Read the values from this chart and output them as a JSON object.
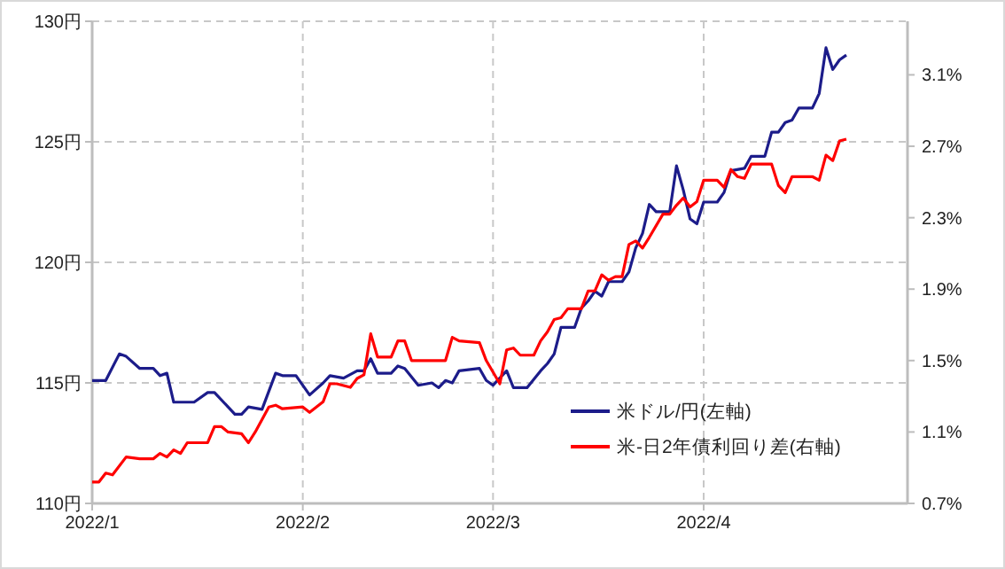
{
  "chart_data": {
    "type": "line",
    "xlim": [
      "2022-01-01",
      "2022-05-01"
    ],
    "xticks": [
      {
        "value": "2022-01-01",
        "label": "2022/1"
      },
      {
        "value": "2022-02-01",
        "label": "2022/2"
      },
      {
        "value": "2022-03-01",
        "label": "2022/3"
      },
      {
        "value": "2022-04-01",
        "label": "2022/4"
      }
    ],
    "ylim": [
      110,
      130
    ],
    "yticks": [
      {
        "value": 110,
        "label": "110円"
      },
      {
        "value": 115,
        "label": "115円"
      },
      {
        "value": 120,
        "label": "120円"
      },
      {
        "value": 125,
        "label": "125円"
      },
      {
        "value": 130,
        "label": "130円"
      }
    ],
    "y2lim": [
      0.7,
      3.4
    ],
    "y2ticks": [
      {
        "value": 0.7,
        "label": "0.7%"
      },
      {
        "value": 1.1,
        "label": "1.1%"
      },
      {
        "value": 1.5,
        "label": "1.5%"
      },
      {
        "value": 1.9,
        "label": "1.9%"
      },
      {
        "value": 2.3,
        "label": "2.3%"
      },
      {
        "value": 2.7,
        "label": "2.7%"
      },
      {
        "value": 3.1,
        "label": "3.1%"
      }
    ],
    "grid": true,
    "legend": "bottom right",
    "line_style": "solid",
    "marker": "none",
    "series": [
      {
        "name": "米ドル/円(左軸)",
        "color": "#1c1c8a",
        "x": [
          "2022-01-01",
          "2022-01-03",
          "2022-01-05",
          "2022-01-06",
          "2022-01-08",
          "2022-01-10",
          "2022-01-11",
          "2022-01-12",
          "2022-01-13",
          "2022-01-16",
          "2022-01-18",
          "2022-01-19",
          "2022-01-21",
          "2022-01-22",
          "2022-01-23",
          "2022-01-24",
          "2022-01-26",
          "2022-01-28",
          "2022-01-29",
          "2022-01-31",
          "2022-02-02",
          "2022-02-04",
          "2022-02-05",
          "2022-02-07",
          "2022-02-09",
          "2022-02-10",
          "2022-02-11",
          "2022-02-12",
          "2022-02-14",
          "2022-02-15",
          "2022-02-16",
          "2022-02-18",
          "2022-02-20",
          "2022-02-21",
          "2022-02-22",
          "2022-02-23",
          "2022-02-24",
          "2022-02-27",
          "2022-02-28",
          "2022-03-01",
          "2022-03-03",
          "2022-03-04",
          "2022-03-06",
          "2022-03-08",
          "2022-03-09",
          "2022-03-10",
          "2022-03-11",
          "2022-03-13",
          "2022-03-14",
          "2022-03-15",
          "2022-03-16",
          "2022-03-17",
          "2022-03-18",
          "2022-03-20",
          "2022-03-21",
          "2022-03-22",
          "2022-03-23",
          "2022-03-24",
          "2022-03-25",
          "2022-03-27",
          "2022-03-28",
          "2022-03-29",
          "2022-03-30",
          "2022-03-31",
          "2022-04-01",
          "2022-04-03",
          "2022-04-04",
          "2022-04-05",
          "2022-04-07",
          "2022-04-08",
          "2022-04-10",
          "2022-04-11",
          "2022-04-12",
          "2022-04-13",
          "2022-04-14",
          "2022-04-15",
          "2022-04-17",
          "2022-04-18",
          "2022-04-19",
          "2022-04-20",
          "2022-04-21",
          "2022-04-22"
        ],
        "values": [
          115.1,
          115.1,
          116.2,
          116.1,
          115.6,
          115.6,
          115.3,
          115.4,
          114.2,
          114.2,
          114.6,
          114.6,
          114.0,
          113.7,
          113.7,
          114.0,
          113.9,
          115.4,
          115.3,
          115.3,
          114.5,
          115.0,
          115.3,
          115.2,
          115.5,
          115.5,
          116.0,
          115.4,
          115.4,
          115.7,
          115.6,
          114.9,
          115.0,
          114.8,
          115.1,
          115.0,
          115.5,
          115.6,
          115.1,
          114.9,
          115.5,
          114.8,
          114.8,
          115.5,
          115.8,
          116.2,
          117.3,
          117.3,
          118.1,
          118.4,
          118.8,
          118.6,
          119.2,
          119.2,
          119.6,
          120.6,
          121.2,
          122.4,
          122.1,
          122.1,
          124.0,
          123.0,
          121.8,
          121.6,
          122.5,
          122.5,
          122.9,
          123.8,
          123.9,
          124.4,
          124.4,
          125.4,
          125.4,
          125.8,
          125.9,
          126.4,
          126.4,
          127.0,
          128.9,
          128.0,
          128.4,
          128.6
        ]
      },
      {
        "name": "米‐日2年債利回り差(右軸)",
        "color": "#ff0000",
        "axis": "y2",
        "x": [
          "2022-01-01",
          "2022-01-02",
          "2022-01-03",
          "2022-01-04",
          "2022-01-06",
          "2022-01-08",
          "2022-01-10",
          "2022-01-11",
          "2022-01-12",
          "2022-01-13",
          "2022-01-14",
          "2022-01-15",
          "2022-01-18",
          "2022-01-19",
          "2022-01-20",
          "2022-01-21",
          "2022-01-23",
          "2022-01-24",
          "2022-01-25",
          "2022-01-27",
          "2022-01-28",
          "2022-01-29",
          "2022-02-01",
          "2022-02-02",
          "2022-02-04",
          "2022-02-05",
          "2022-02-06",
          "2022-02-08",
          "2022-02-09",
          "2022-02-10",
          "2022-02-11",
          "2022-02-12",
          "2022-02-14",
          "2022-02-15",
          "2022-02-16",
          "2022-02-17",
          "2022-02-22",
          "2022-02-23",
          "2022-02-24",
          "2022-02-27",
          "2022-02-28",
          "2022-03-02",
          "2022-03-03",
          "2022-03-04",
          "2022-03-05",
          "2022-03-07",
          "2022-03-08",
          "2022-03-09",
          "2022-03-10",
          "2022-03-11",
          "2022-03-12",
          "2022-03-14",
          "2022-03-15",
          "2022-03-16",
          "2022-03-17",
          "2022-03-18",
          "2022-03-19",
          "2022-03-20",
          "2022-03-21",
          "2022-03-22",
          "2022-03-23",
          "2022-03-24",
          "2022-03-26",
          "2022-03-27",
          "2022-03-28",
          "2022-03-29",
          "2022-03-30",
          "2022-03-31",
          "2022-04-01",
          "2022-04-03",
          "2022-04-04",
          "2022-04-05",
          "2022-04-06",
          "2022-04-07",
          "2022-04-08",
          "2022-04-11",
          "2022-04-12",
          "2022-04-13",
          "2022-04-14",
          "2022-04-17",
          "2022-04-18",
          "2022-04-19",
          "2022-04-20",
          "2022-04-21",
          "2022-04-22"
        ],
        "values": [
          0.82,
          0.82,
          0.87,
          0.86,
          0.96,
          0.95,
          0.95,
          0.98,
          0.96,
          1.0,
          0.98,
          1.04,
          1.04,
          1.13,
          1.13,
          1.1,
          1.09,
          1.04,
          1.1,
          1.24,
          1.25,
          1.23,
          1.24,
          1.21,
          1.27,
          1.37,
          1.37,
          1.35,
          1.4,
          1.42,
          1.65,
          1.52,
          1.52,
          1.61,
          1.61,
          1.5,
          1.5,
          1.63,
          1.61,
          1.6,
          1.5,
          1.37,
          1.56,
          1.57,
          1.53,
          1.53,
          1.61,
          1.66,
          1.73,
          1.74,
          1.79,
          1.79,
          1.89,
          1.89,
          1.98,
          1.95,
          1.97,
          1.97,
          2.15,
          2.17,
          2.13,
          2.19,
          2.32,
          2.32,
          2.37,
          2.41,
          2.36,
          2.39,
          2.51,
          2.51,
          2.47,
          2.57,
          2.53,
          2.52,
          2.6,
          2.6,
          2.48,
          2.44,
          2.53,
          2.53,
          2.51,
          2.65,
          2.62,
          2.73,
          2.74
        ]
      }
    ]
  }
}
